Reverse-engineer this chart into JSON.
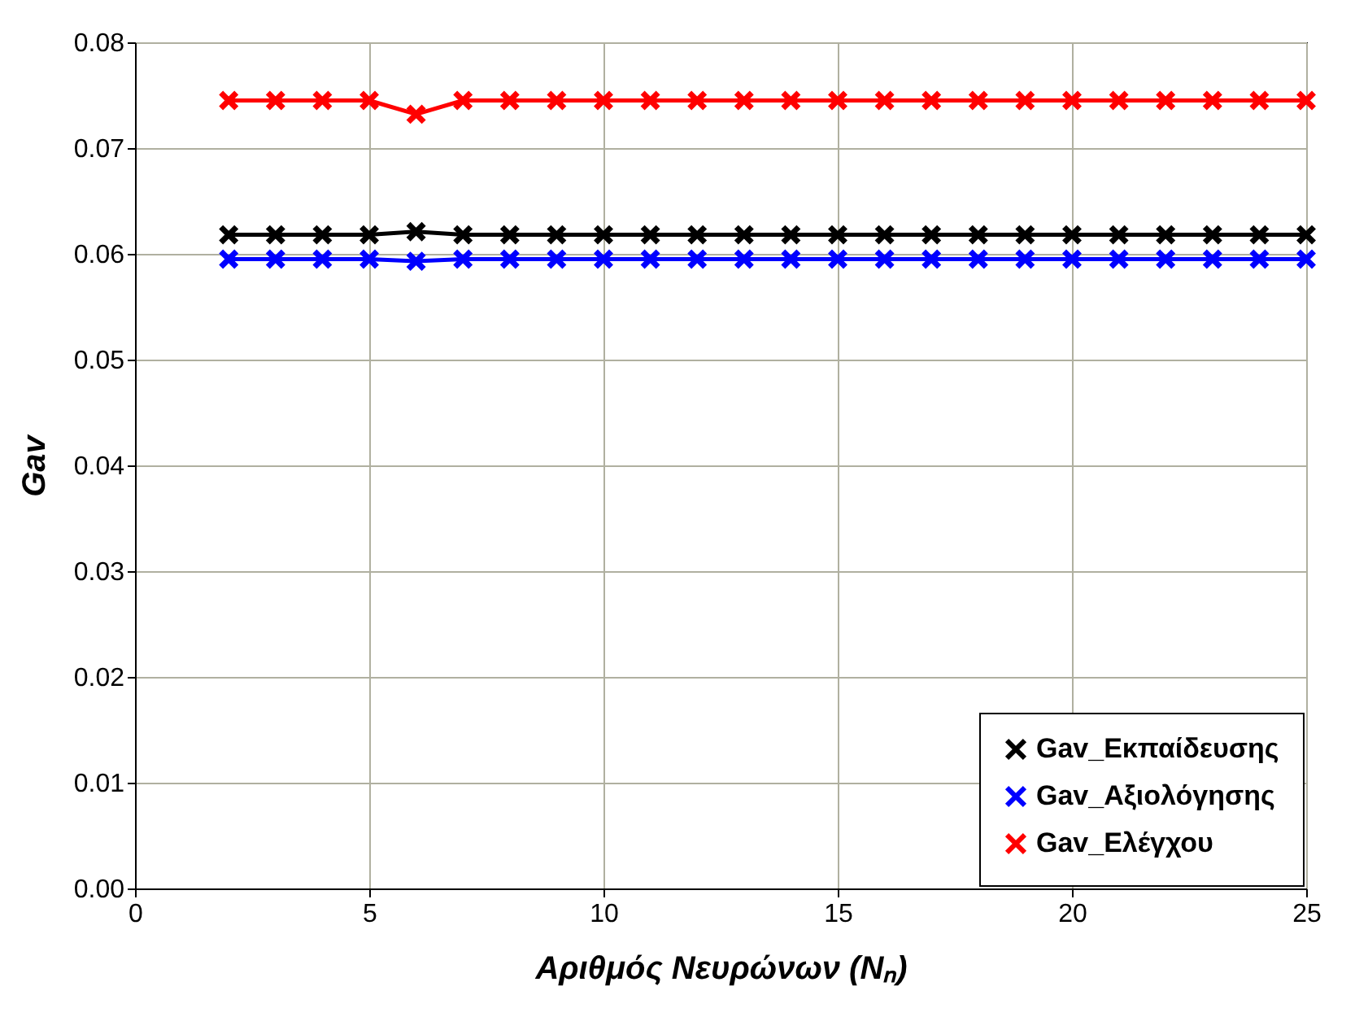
{
  "chart_data": {
    "type": "line",
    "xlabel": "Αριθμός Νευρώνων (Nₙ)",
    "ylabel": "Gav",
    "x": [
      2,
      3,
      4,
      5,
      6,
      7,
      8,
      9,
      10,
      11,
      12,
      13,
      14,
      15,
      16,
      17,
      18,
      19,
      20,
      21,
      22,
      23,
      24,
      25
    ],
    "series": [
      {
        "name": "Gav_Εκπαίδευσης",
        "color": "#000000",
        "values": [
          0.0618,
          0.0618,
          0.0618,
          0.0618,
          0.0621,
          0.0618,
          0.0618,
          0.0618,
          0.0618,
          0.0618,
          0.0618,
          0.0618,
          0.0618,
          0.0618,
          0.0618,
          0.0618,
          0.0618,
          0.0618,
          0.0618,
          0.0618,
          0.0618,
          0.0618,
          0.0618,
          0.0618
        ]
      },
      {
        "name": "Gav_Αξιολόγησης",
        "color": "#0000ff",
        "values": [
          0.0595,
          0.0595,
          0.0595,
          0.0595,
          0.0593,
          0.0595,
          0.0595,
          0.0595,
          0.0595,
          0.0595,
          0.0595,
          0.0595,
          0.0595,
          0.0595,
          0.0595,
          0.0595,
          0.0595,
          0.0595,
          0.0595,
          0.0595,
          0.0595,
          0.0595,
          0.0595,
          0.0595
        ]
      },
      {
        "name": "Gav_Ελέγχου",
        "color": "#ff0000",
        "values": [
          0.0745,
          0.0745,
          0.0745,
          0.0745,
          0.0732,
          0.0745,
          0.0745,
          0.0745,
          0.0745,
          0.0745,
          0.0745,
          0.0745,
          0.0745,
          0.0745,
          0.0745,
          0.0745,
          0.0745,
          0.0745,
          0.0745,
          0.0745,
          0.0745,
          0.0745,
          0.0745,
          0.0745
        ]
      }
    ],
    "xlim": [
      0,
      25
    ],
    "xticks": [
      0,
      5,
      10,
      15,
      20,
      25
    ],
    "ylim": [
      0,
      0.08
    ],
    "yticks": [
      {
        "value": 0,
        "label": "0.00"
      },
      {
        "value": 0.01,
        "label": "0.01"
      },
      {
        "value": 0.02,
        "label": "0.02"
      },
      {
        "value": 0.03,
        "label": "0.03"
      },
      {
        "value": 0.04,
        "label": "0.04"
      },
      {
        "value": 0.05,
        "label": "0.05"
      },
      {
        "value": 0.06,
        "label": "0.06"
      },
      {
        "value": 0.07,
        "label": "0.07"
      },
      {
        "value": 0.08,
        "label": "0.08"
      }
    ],
    "grid": true,
    "legend": "bottom right",
    "marker": "cross",
    "line_style": "solid"
  }
}
